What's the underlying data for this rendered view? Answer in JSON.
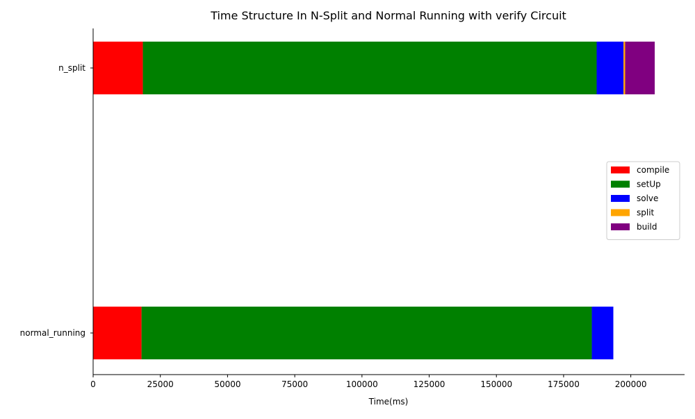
{
  "chart_data": {
    "type": "bar",
    "orientation": "horizontal",
    "stacked": true,
    "title": "Time Structure In N-Split and Normal Running with verify Circuit",
    "xlabel": "Time(ms)",
    "ylabel": "",
    "xlim": [
      0,
      220000
    ],
    "xticks": [
      0,
      25000,
      50000,
      75000,
      100000,
      125000,
      150000,
      175000,
      200000
    ],
    "categories": [
      "n_split",
      "normal_running"
    ],
    "series": [
      {
        "name": "compile",
        "color": "#ff0000",
        "values": [
          18500,
          18000
        ]
      },
      {
        "name": "setUp",
        "color": "#008000",
        "values": [
          168800,
          167500
        ]
      },
      {
        "name": "solve",
        "color": "#0000ff",
        "values": [
          10000,
          8000
        ]
      },
      {
        "name": "split",
        "color": "#ffa500",
        "values": [
          600,
          0
        ]
      },
      {
        "name": "build",
        "color": "#800080",
        "values": [
          11000,
          0
        ]
      }
    ],
    "grid": false,
    "legend_position": "center-right"
  }
}
